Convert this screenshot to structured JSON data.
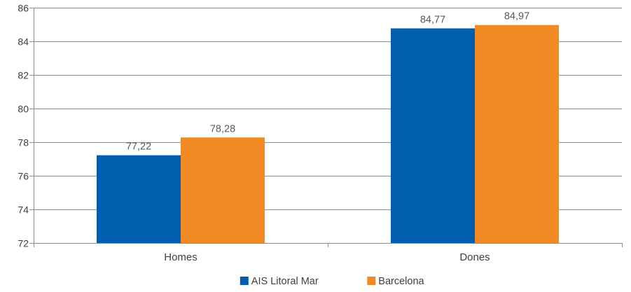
{
  "chart_data": {
    "type": "bar",
    "categories": [
      "Homes",
      "Dones"
    ],
    "series": [
      {
        "name": "AIS Litoral Mar",
        "values": [
          77.22,
          84.77
        ],
        "labels": [
          "77,22",
          "84,77"
        ],
        "color": "#005eae"
      },
      {
        "name": "Barcelona",
        "values": [
          78.28,
          84.97
        ],
        "labels": [
          "78,28",
          "84,97"
        ],
        "color": "#f18a23"
      }
    ],
    "ylim": [
      72,
      86
    ],
    "yticks": [
      72,
      74,
      76,
      78,
      80,
      82,
      84,
      86
    ],
    "grid": true,
    "legend": "bottom",
    "title": "",
    "xlabel": "",
    "ylabel": ""
  }
}
